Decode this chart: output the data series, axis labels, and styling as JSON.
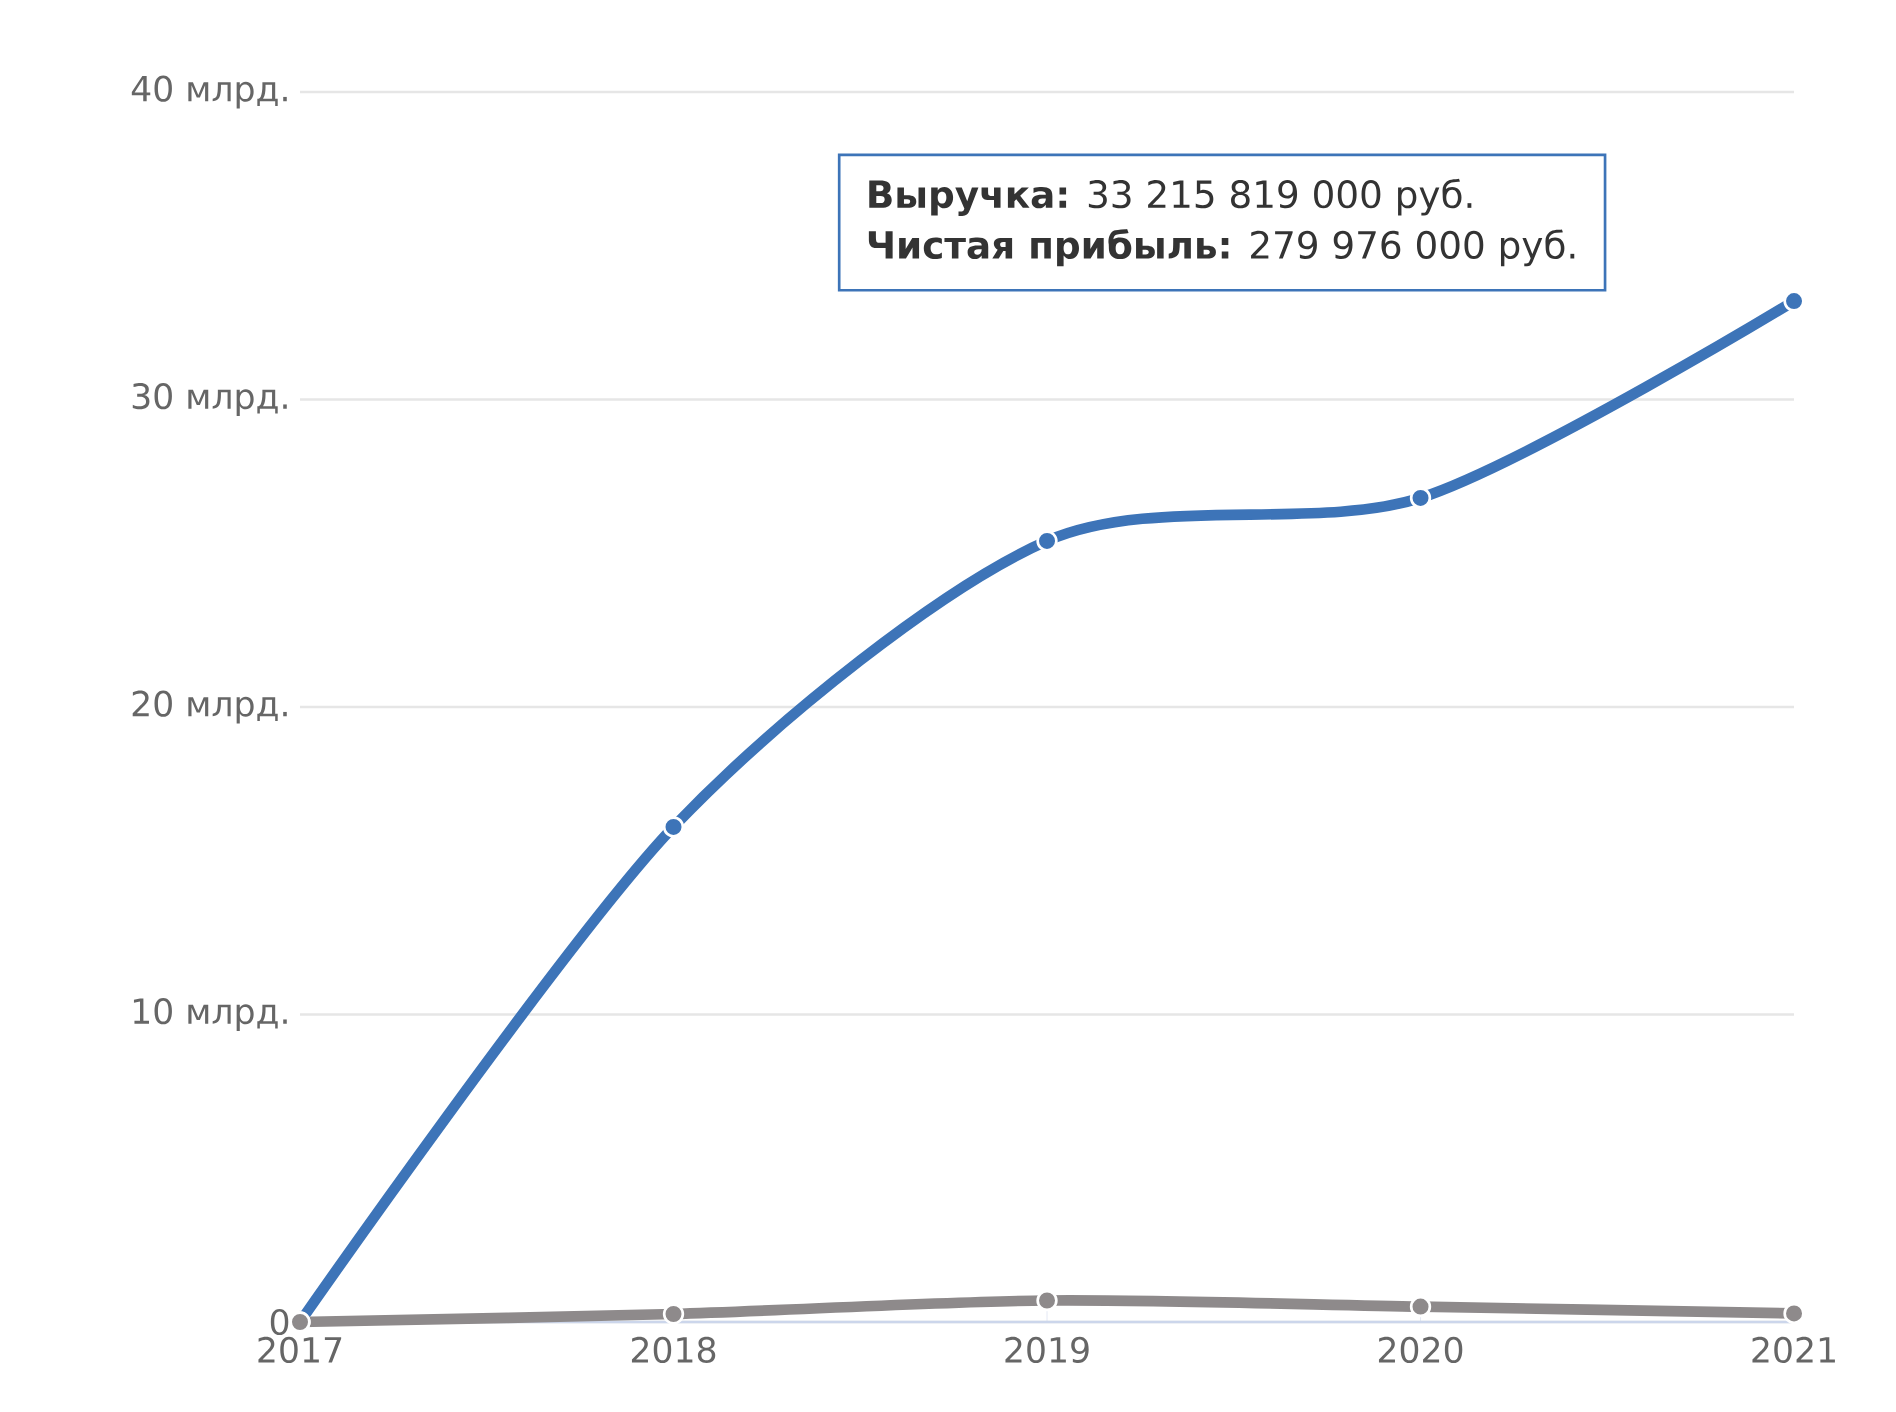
{
  "chart_data": {
    "type": "line",
    "x": [
      2017,
      2018,
      2019,
      2020,
      2021
    ],
    "xlim": [
      2017,
      2021
    ],
    "xticks": [
      2017,
      2018,
      2019,
      2020,
      2021
    ],
    "ylim": [
      0,
      40
    ],
    "yticks": [
      0,
      {
        "value": 10,
        "label": "10 млрд."
      },
      {
        "value": 20,
        "label": "20 млрд."
      },
      {
        "value": 30,
        "label": "30 млрд."
      },
      {
        "value": 40,
        "label": "40 млрд."
      }
    ],
    "grid": "y",
    "marker": "circle",
    "series": [
      {
        "color": "#3d74b8",
        "values": [
          0,
          16.1,
          25.4,
          26.8,
          33.2
        ]
      },
      {
        "color": "#8e8a8b",
        "values": [
          0,
          0.26,
          0.7,
          0.5,
          0.28
        ]
      }
    ],
    "annotations": [
      "**Выручка:** 33 215 819 000 руб.",
      "**Чистая прибыль:** 279 976 000 руб."
    ]
  }
}
